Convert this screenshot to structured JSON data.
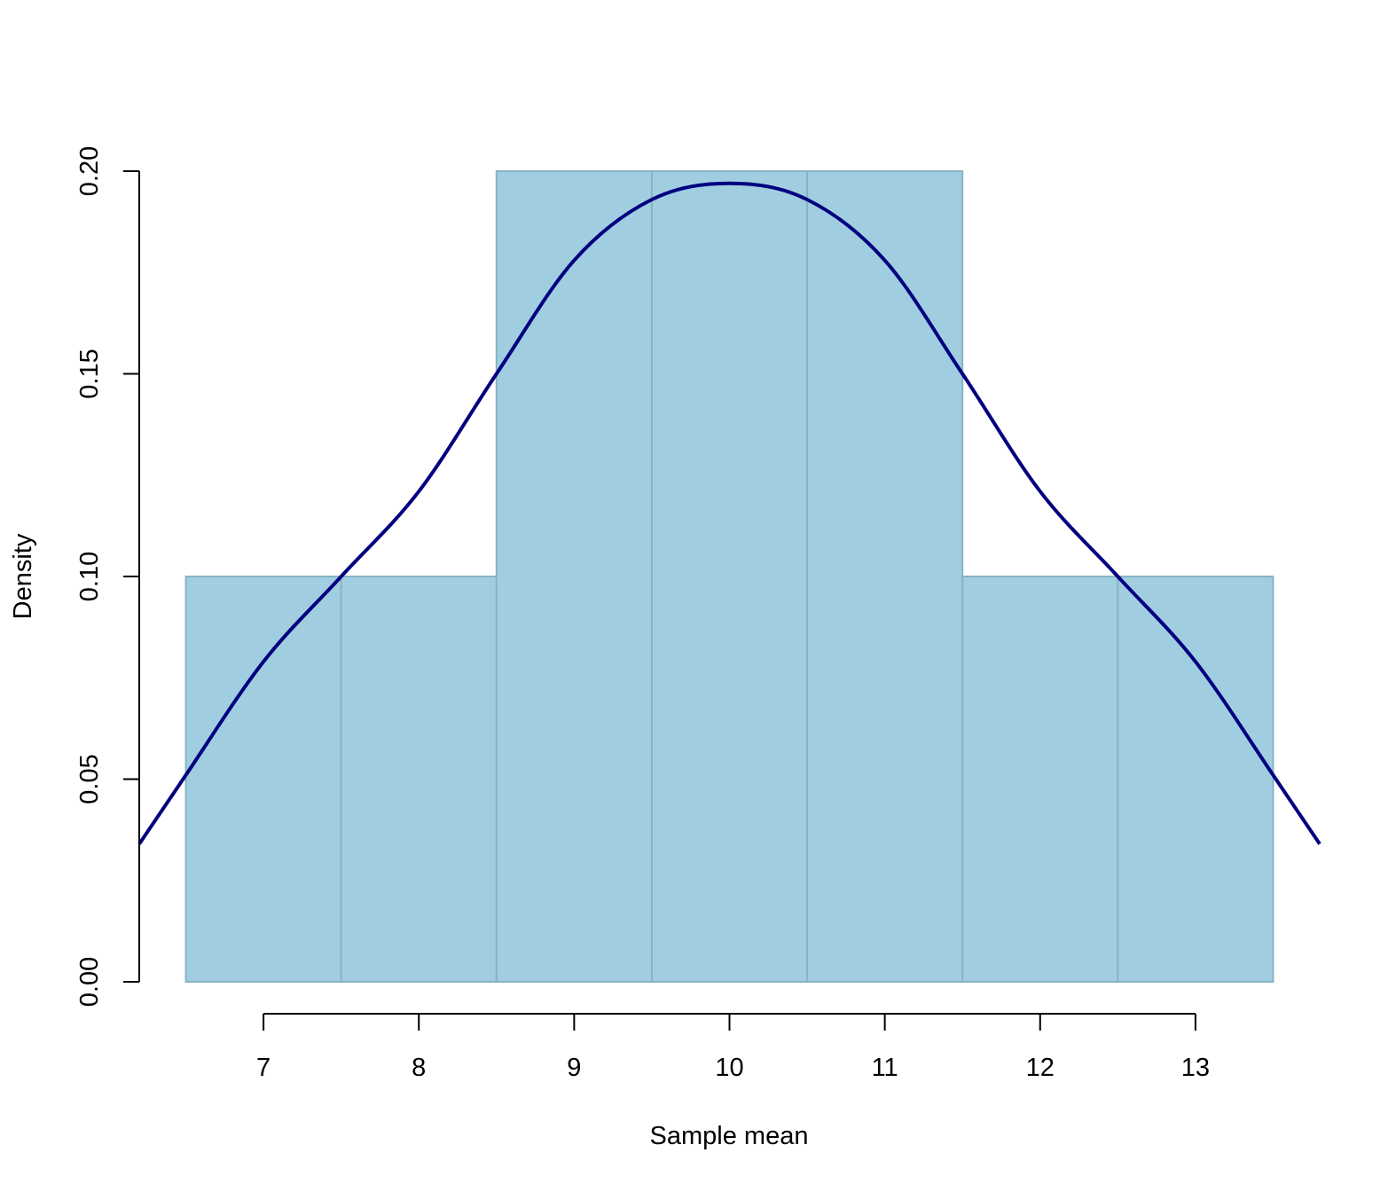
{
  "chart_data": {
    "type": "bar",
    "subtype": "histogram-with-density-curve",
    "title": "",
    "xlabel": "Sample mean",
    "ylabel": "Density",
    "bins": [
      {
        "from": 6.5,
        "to": 7.5,
        "density": 0.1
      },
      {
        "from": 7.5,
        "to": 8.5,
        "density": 0.1
      },
      {
        "from": 8.5,
        "to": 9.5,
        "density": 0.2
      },
      {
        "from": 9.5,
        "to": 10.5,
        "density": 0.2
      },
      {
        "from": 10.5,
        "to": 11.5,
        "density": 0.2
      },
      {
        "from": 11.5,
        "to": 12.5,
        "density": 0.1
      },
      {
        "from": 12.5,
        "to": 13.5,
        "density": 0.1
      }
    ],
    "density_curve": {
      "x": [
        6.2,
        6.5,
        7.0,
        7.5,
        8.0,
        8.5,
        9.0,
        9.5,
        10.0,
        10.5,
        11.0,
        11.5,
        12.0,
        12.5,
        13.0,
        13.5,
        13.8
      ],
      "y": [
        0.034,
        0.051,
        0.079,
        0.1,
        0.121,
        0.15,
        0.178,
        0.193,
        0.197,
        0.193,
        0.178,
        0.15,
        0.121,
        0.1,
        0.079,
        0.051,
        0.034
      ]
    },
    "x_ticks": [
      "7",
      "8",
      "9",
      "10",
      "11",
      "12",
      "13"
    ],
    "y_ticks": [
      "0.00",
      "0.05",
      "0.10",
      "0.15",
      "0.20"
    ],
    "xlim": [
      6.2,
      13.8
    ],
    "ylim": [
      0,
      0.2
    ],
    "grid": false,
    "colors": {
      "bar_fill": "#a0cee0",
      "bar_stroke": "#88b3c5",
      "curve": "#000080",
      "axis": "#000000"
    }
  }
}
